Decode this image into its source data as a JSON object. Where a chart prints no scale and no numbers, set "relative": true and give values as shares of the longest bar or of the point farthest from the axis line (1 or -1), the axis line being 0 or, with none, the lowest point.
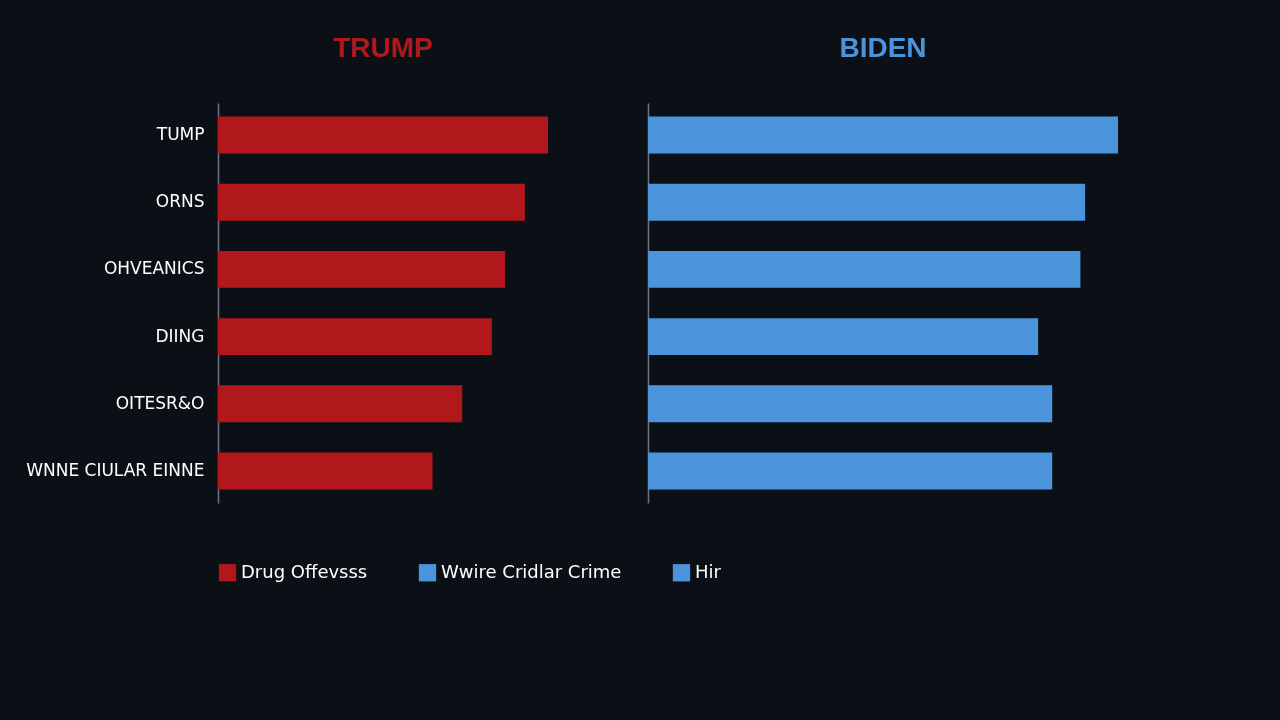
{
  "chart_data": [
    {
      "type": "bar",
      "orientation": "horizontal",
      "relative": true,
      "title": "TRUMP",
      "legend": "bottom",
      "categories": [
        "TUMP",
        "ORNS",
        "OHVEANICS",
        "DIING",
        "OITESR&O",
        "WNNE CIULAR EINNE"
      ],
      "series": [
        {
          "name": "Drug Offevsss",
          "color": "#b0181c",
          "values": [
            1,
            0.93,
            0.87,
            0.83,
            0.74,
            0.65
          ]
        }
      ]
    },
    {
      "type": "bar",
      "orientation": "horizontal",
      "relative": true,
      "title": "BIDEN",
      "legend": "bottom",
      "categories": [
        null,
        null,
        null,
        null,
        null,
        null
      ],
      "annotations": [
        "Hir"
      ],
      "series": [
        {
          "name": "Wwire Cridlar Crime",
          "color": "#4b93db",
          "values": [
            1,
            0.93,
            0.92,
            0.83,
            0.86,
            0.86
          ]
        }
      ]
    }
  ]
}
